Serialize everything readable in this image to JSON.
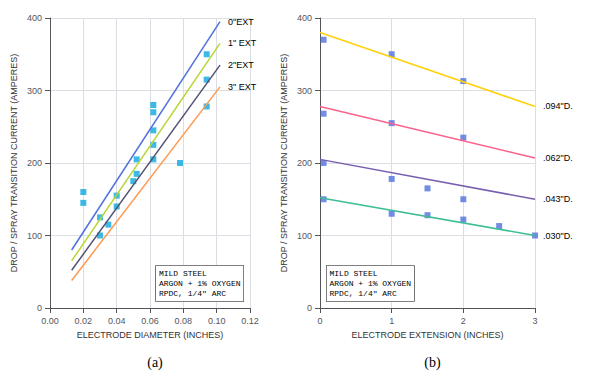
{
  "chart_data": [
    {
      "type": "line",
      "title": "(a)",
      "xlabel": "ELECTRODE DIAMETER (INCHES)",
      "ylabel": "DROP / SPRAY TRANSITION CURRENT (AMPERES)",
      "xlim": [
        0,
        0.12
      ],
      "ylim": [
        0,
        400
      ],
      "xticks": [
        {
          "value": 0,
          "label": "0.00"
        },
        {
          "value": 0.02,
          "label": "0.02"
        },
        {
          "value": 0.04,
          "label": "0.04"
        },
        {
          "value": 0.06,
          "label": "0.06"
        },
        {
          "value": 0.08,
          "label": "0.08"
        },
        {
          "value": 0.1,
          "label": "0.10"
        },
        {
          "value": 0.12,
          "label": "0.12"
        }
      ],
      "yticks": [
        0,
        100,
        200,
        300,
        400
      ],
      "grid": true,
      "annotation": "MILD STEEL\nARGON + 1% OXYGEN\nRPDC, 1/4\" ARC",
      "series": [
        {
          "name": "0\"EXT",
          "type": "line",
          "x": [
            0.013,
            0.102
          ],
          "values": [
            80,
            395
          ]
        },
        {
          "name": "1\" EXT",
          "type": "line",
          "x": [
            0.013,
            0.102
          ],
          "values": [
            65,
            365
          ]
        },
        {
          "name": "2\"EXT",
          "type": "line",
          "x": [
            0.013,
            0.102
          ],
          "values": [
            52,
            335
          ]
        },
        {
          "name": "3\" EXT",
          "type": "line",
          "x": [
            0.013,
            0.102
          ],
          "values": [
            38,
            305
          ]
        },
        {
          "type": "scatter",
          "marker": "square",
          "x": [
            0.02,
            0.02,
            0.03,
            0.03,
            0.035,
            0.04,
            0.04,
            0.05,
            0.052,
            0.052,
            0.062,
            0.062,
            0.062,
            0.062,
            0.062,
            0.078,
            0.094,
            0.094,
            0.094
          ],
          "values": [
            160,
            145,
            125,
            100,
            115,
            155,
            140,
            175,
            205,
            185,
            270,
            280,
            225,
            205,
            245,
            200,
            350,
            315,
            278
          ]
        }
      ]
    },
    {
      "type": "line",
      "title": "(b)",
      "xlabel": "ELECTRODE EXTENSION (INCHES)",
      "ylabel": "DROP / SPRAY TRANSITION CURRENT (AMPERES)",
      "xlim": [
        0,
        3
      ],
      "ylim": [
        0,
        400
      ],
      "xticks": [
        0,
        1,
        2,
        3
      ],
      "yticks": [
        0,
        100,
        200,
        300,
        400
      ],
      "grid": true,
      "annotation": "MILD STEEL\nARGON + 1% OXYGEN\nRPDC, 1/4\" ARC",
      "series": [
        {
          "name": ".094\"D.",
          "type": "line",
          "x": [
            0,
            3
          ],
          "values": [
            380,
            278
          ]
        },
        {
          "name": ".062\"D.",
          "type": "line",
          "x": [
            0,
            3
          ],
          "values": [
            278,
            207
          ]
        },
        {
          "name": ".043\"D.",
          "type": "line",
          "x": [
            0,
            3
          ],
          "values": [
            205,
            150
          ]
        },
        {
          "name": ".030\"D.",
          "type": "line",
          "x": [
            0,
            3
          ],
          "values": [
            152,
            100
          ]
        },
        {
          "type": "scatter",
          "marker": "square",
          "x": [
            0.05,
            1.0,
            2.0,
            0.05,
            1.0,
            2.0,
            0.05,
            1.0,
            1.5,
            2.0,
            0.05,
            1.0,
            1.5,
            2.0,
            2.5,
            3.0
          ],
          "values": [
            370,
            350,
            313,
            268,
            255,
            235,
            200,
            178,
            165,
            150,
            150,
            130,
            128,
            122,
            113,
            100
          ]
        }
      ]
    }
  ]
}
